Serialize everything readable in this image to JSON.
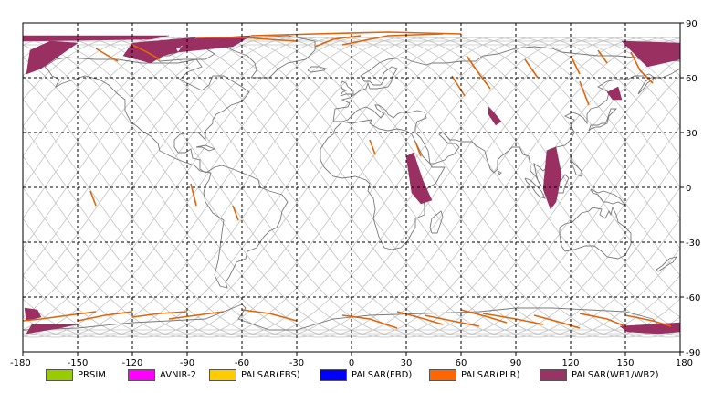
{
  "map": {
    "x_axis": {
      "range": [
        -180,
        180
      ],
      "ticks": [
        "-180",
        "-150",
        "-120",
        "-90",
        "-60",
        "-30",
        "0",
        "30",
        "60",
        "90",
        "120",
        "150",
        "180"
      ]
    },
    "y_axis": {
      "range": [
        -90,
        90
      ],
      "ticks": [
        "90",
        "60",
        "30",
        "0",
        "-30",
        "-60",
        "-90"
      ]
    },
    "grid": "dashed, every 30 degrees",
    "colors": {
      "orbit": "#c4c4c4",
      "coast": "#7a7a7a",
      "grid": "#000000",
      "plr": "#e0640a",
      "wb": "#9a2f62"
    }
  },
  "legend": {
    "items": [
      {
        "label": "PRSIM",
        "color": "#99cc00"
      },
      {
        "label": "AVNIR-2",
        "color": "#ff00ff"
      },
      {
        "label": "PALSAR(FBS)",
        "color": "#ffcc00"
      },
      {
        "label": "PALSAR(FBD)",
        "color": "#0000ff"
      },
      {
        "label": "PALSAR(PLR)",
        "color": "#ff6600"
      },
      {
        "label": "PALSAR(WB1/WB2)",
        "color": "#993366"
      }
    ]
  }
}
